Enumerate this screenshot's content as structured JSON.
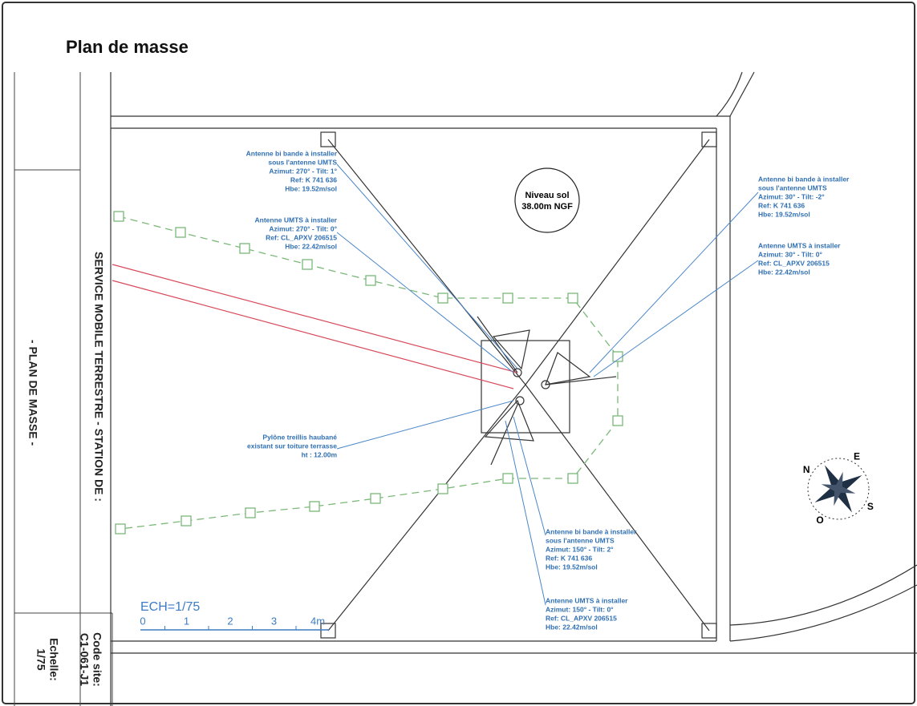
{
  "header": {
    "title": "Plan de masse"
  },
  "sidebar": {
    "project": "SERVICE MOBILE TERRESTRE - STATION DE :",
    "plan": "- PLAN DE MASSE -",
    "code_label": "Code site:",
    "code": "C1-061-J1",
    "scale_label": "Echelle:",
    "scale": "1/75"
  },
  "ground_level": {
    "label": "Niveau sol",
    "value": "38.00m NGF"
  },
  "annotations": [
    {
      "lines": [
        "Antenne bi bande à installer",
        "sous l'antenne UMTS",
        "Azimut: 270° - Tilt: 1°",
        "Ref: K 741 636",
        "Hbe: 19.52m/sol"
      ]
    },
    {
      "lines": [
        "Antenne UMTS à installer",
        "Azimut: 270° - Tilt: 0°",
        "Ref: CL_APXV 206515",
        "Hbe: 22.42m/sol"
      ]
    },
    {
      "lines": [
        "Antenne bi bande à installer",
        "sous l'antenne UMTS",
        "Azimut: 30° - Tilt: -2°",
        "Ref: K 741 636",
        "Hbe: 19.52m/sol"
      ]
    },
    {
      "lines": [
        "Antenne UMTS à installer",
        "Azimut: 30° - Tilt: 0°",
        "Ref: CL_APXV 206515",
        "Hbe: 22.42m/sol"
      ]
    },
    {
      "lines": [
        "Pylône treillis haubané",
        "existant sur toiture terrasse",
        "ht : 12.00m"
      ]
    },
    {
      "lines": [
        "Antenne bi bande à installer",
        "sous l'antenne UMTS",
        "Azimut: 150° - Tilt: 2°",
        "Ref: K 741 636",
        "Hbe: 19.52m/sol"
      ]
    },
    {
      "lines": [
        "Antenne UMTS à installer",
        "Azimut: 150° - Tilt: 0°",
        "Ref: CL_APXV 206515",
        "Hbe: 22.42m/sol"
      ]
    }
  ],
  "scale_bar": {
    "title": "ECH=1/75",
    "ticks": [
      "0",
      "1",
      "2",
      "3",
      "4m"
    ]
  },
  "compass": {
    "north": "N",
    "east": "E",
    "south": "S",
    "west": "O"
  }
}
